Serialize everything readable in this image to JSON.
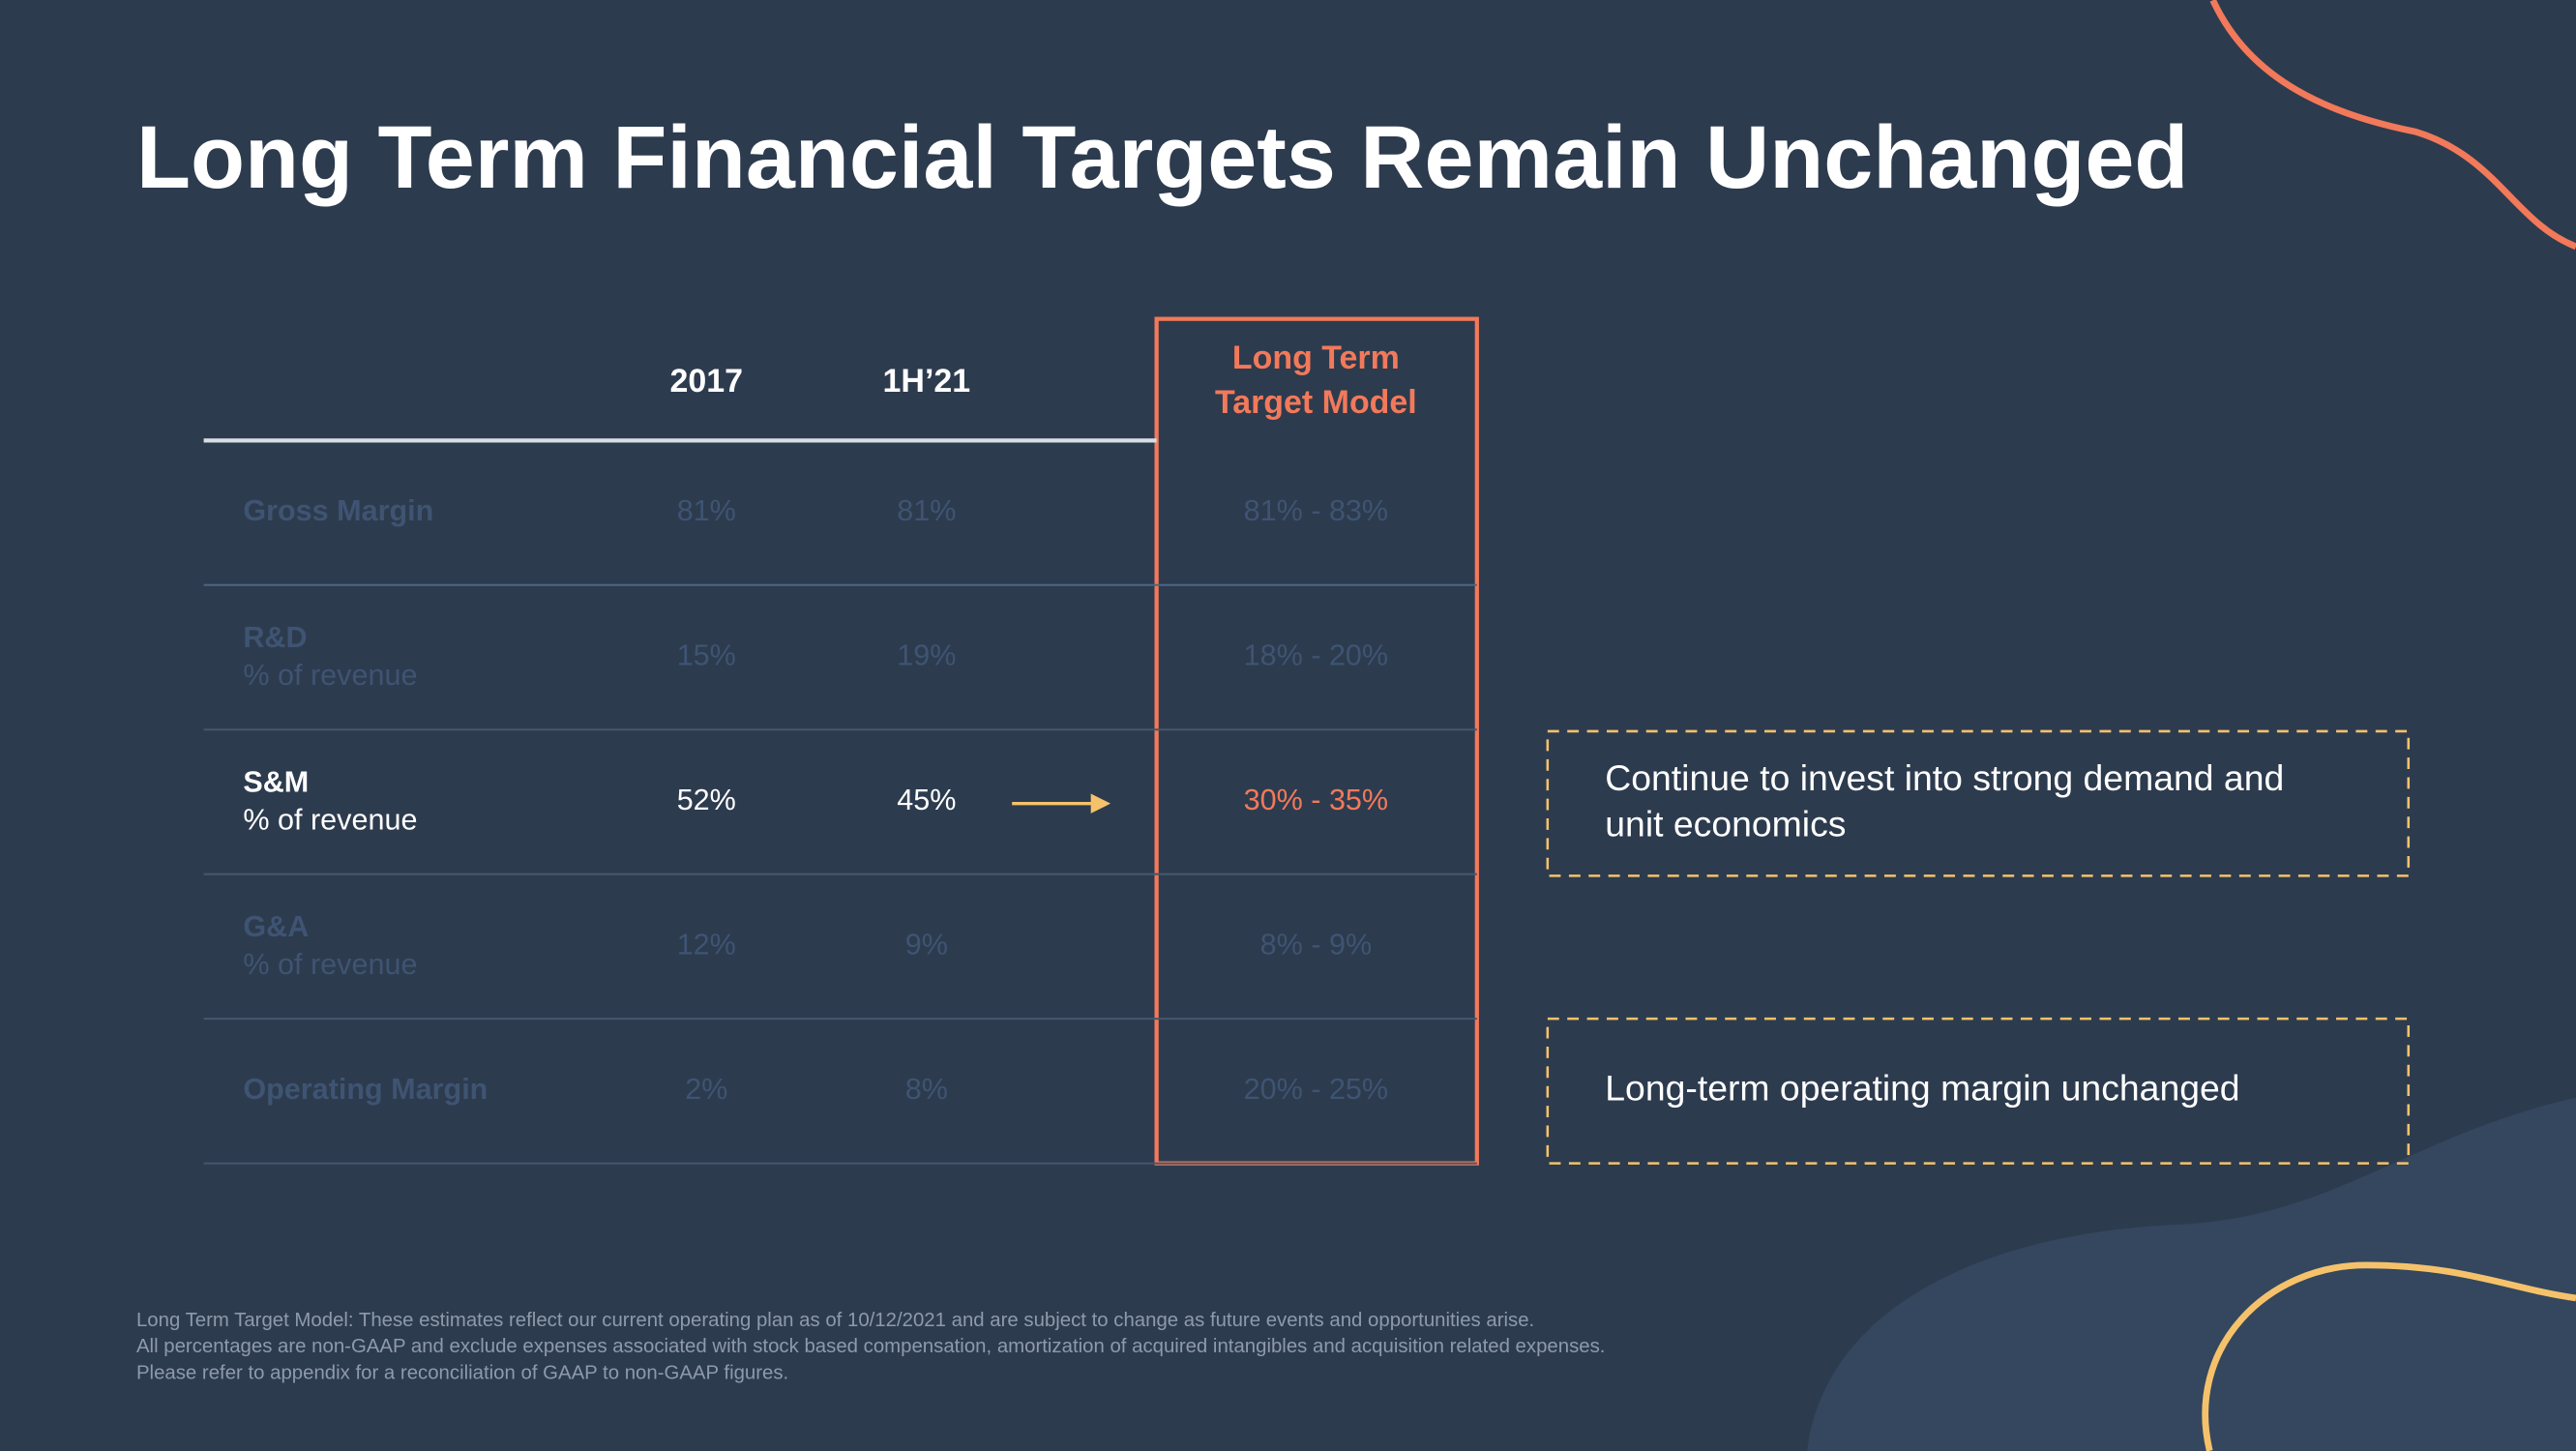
{
  "header": {
    "title": "Long Term Financial Targets Remain Unchanged"
  },
  "table": {
    "columns": [
      "2017",
      "1H’21"
    ],
    "target_column": [
      "Long Term",
      "Target Model"
    ],
    "rows": [
      {
        "label": "Gross Margin",
        "values": [
          "81%",
          "81%",
          "81% - 83%"
        ]
      },
      {
        "label": "R&D",
        "sublabel": "% of revenue",
        "values": [
          "15%",
          "19%",
          "18% - 20%"
        ]
      },
      {
        "label": "S&M",
        "sublabel": "% of revenue",
        "values": [
          "52%",
          "45%",
          "30% - 35%"
        ]
      },
      {
        "label": "G&A",
        "sublabel": "% of revenue",
        "values": [
          "12%",
          "9%",
          "8% - 9%"
        ]
      },
      {
        "label": "Operating Margin",
        "values": [
          "2%",
          "8%",
          "20% - 25%"
        ]
      }
    ]
  },
  "callouts": [
    {
      "lines": [
        "Continue to invest into strong demand and",
        "unit economics"
      ]
    },
    {
      "lines": [
        "Long-term operating margin unchanged"
      ]
    }
  ],
  "footnotes": [
    "Long Term Target Model: These estimates reflect our current operating plan as of 10/12/2021 and are subject to change as future events and opportunities arise.",
    "All percentages are non-GAAP and exclude expenses associated with stock based compensation, amortization of acquired intangibles and acquisition related expenses.",
    "Please refer to appendix for a reconciliation of GAAP to non-GAAP figures."
  ]
}
